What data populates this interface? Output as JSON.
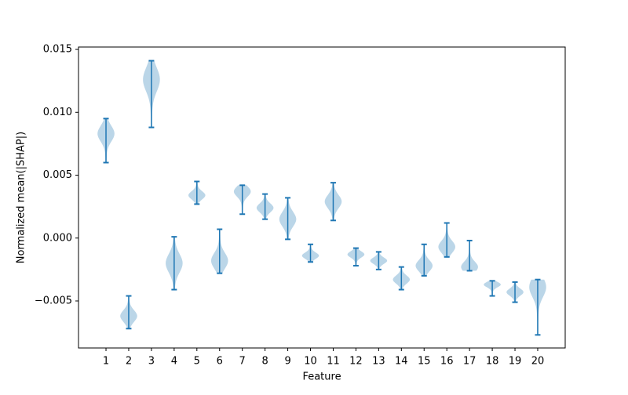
{
  "chart_data": {
    "type": "violin",
    "xlabel": "Feature",
    "ylabel": "Normalized mean(|SHAP|)",
    "categories": [
      "1",
      "2",
      "3",
      "4",
      "5",
      "6",
      "7",
      "8",
      "9",
      "10",
      "11",
      "12",
      "13",
      "14",
      "15",
      "16",
      "17",
      "18",
      "19",
      "20"
    ],
    "min": [
      0.006,
      -0.0072,
      0.0088,
      -0.0041,
      0.0027,
      -0.0028,
      0.0019,
      0.0015,
      -0.0001,
      -0.0019,
      0.0014,
      -0.0022,
      -0.0025,
      -0.0041,
      -0.003,
      -0.0015,
      -0.0026,
      -0.0046,
      -0.0051,
      -0.0077
    ],
    "max": [
      0.0095,
      -0.0046,
      0.0141,
      0.0001,
      0.0045,
      0.0007,
      0.0042,
      0.0035,
      0.0032,
      -0.0005,
      0.0044,
      -0.0008,
      -0.0011,
      -0.0023,
      -0.0005,
      0.0012,
      -0.0002,
      -0.0034,
      -0.0035,
      -0.0033
    ],
    "peak": [
      0.0083,
      -0.0062,
      0.0126,
      -0.002,
      0.0034,
      -0.0018,
      0.0037,
      0.0024,
      0.0015,
      -0.0014,
      0.0029,
      -0.0013,
      -0.0018,
      -0.0033,
      -0.0022,
      -0.0007,
      -0.0023,
      -0.0037,
      -0.0043,
      -0.0039
    ],
    "body_color": "#1f77b4",
    "line_color": "#1f77b4",
    "xlim": [
      -0.21,
      21.21
    ],
    "ylim": [
      -0.00874,
      0.01519
    ],
    "yticks": [
      {
        "value": -0.005,
        "label": "−0.005"
      },
      {
        "value": 0,
        "label": "0.000"
      },
      {
        "value": 0.005,
        "label": "0.005"
      },
      {
        "value": 0.01,
        "label": "0.010"
      },
      {
        "value": 0.015,
        "label": "0.015"
      }
    ]
  }
}
